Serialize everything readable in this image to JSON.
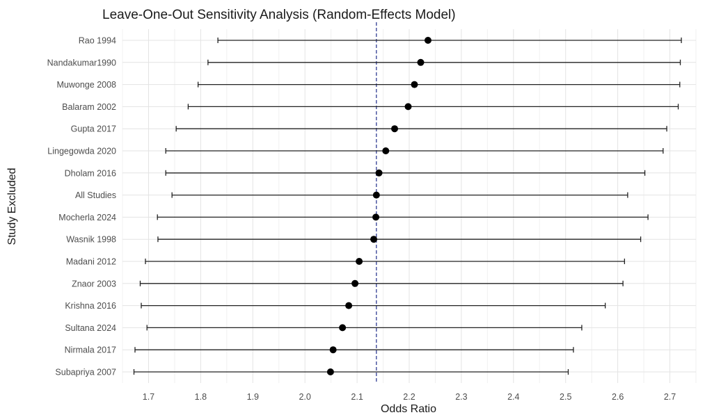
{
  "chart_data": {
    "type": "forest",
    "title": "Leave-One-Out Sensitivity Analysis (Random-Effects Model)",
    "xlabel": "Odds Ratio",
    "ylabel": "Study Excluded",
    "xlim": [
      1.65,
      2.75
    ],
    "xticks": [
      "1.7",
      "1.8",
      "1.9",
      "2.0",
      "2.1",
      "2.2",
      "2.3",
      "2.4",
      "2.5",
      "2.6",
      "2.7"
    ],
    "reference_line": 2.137,
    "grid": true,
    "categories": [
      "Rao 1994",
      "Nandakumar1990",
      "Muwonge 2008",
      "Balaram 2002",
      "Gupta 2017",
      "Lingegowda 2020",
      "Dholam 2016",
      "All Studies",
      "Mocherla 2024",
      "Wasnik 1998",
      "Madani 2012",
      "Znaor 2003",
      "Krishna 2016",
      "Sultana 2024",
      "Nirmala 2017",
      "Subapriya 2007"
    ],
    "estimates": [
      2.236,
      2.222,
      2.21,
      2.198,
      2.172,
      2.155,
      2.142,
      2.137,
      2.136,
      2.132,
      2.104,
      2.096,
      2.084,
      2.072,
      2.054,
      2.049
    ],
    "lower": [
      1.833,
      1.814,
      1.795,
      1.776,
      1.753,
      1.733,
      1.733,
      1.745,
      1.717,
      1.718,
      1.694,
      1.684,
      1.686,
      1.697,
      1.674,
      1.672
    ],
    "upper": [
      2.722,
      2.72,
      2.719,
      2.716,
      2.694,
      2.687,
      2.652,
      2.619,
      2.658,
      2.644,
      2.613,
      2.61,
      2.576,
      2.531,
      2.515,
      2.505
    ]
  }
}
